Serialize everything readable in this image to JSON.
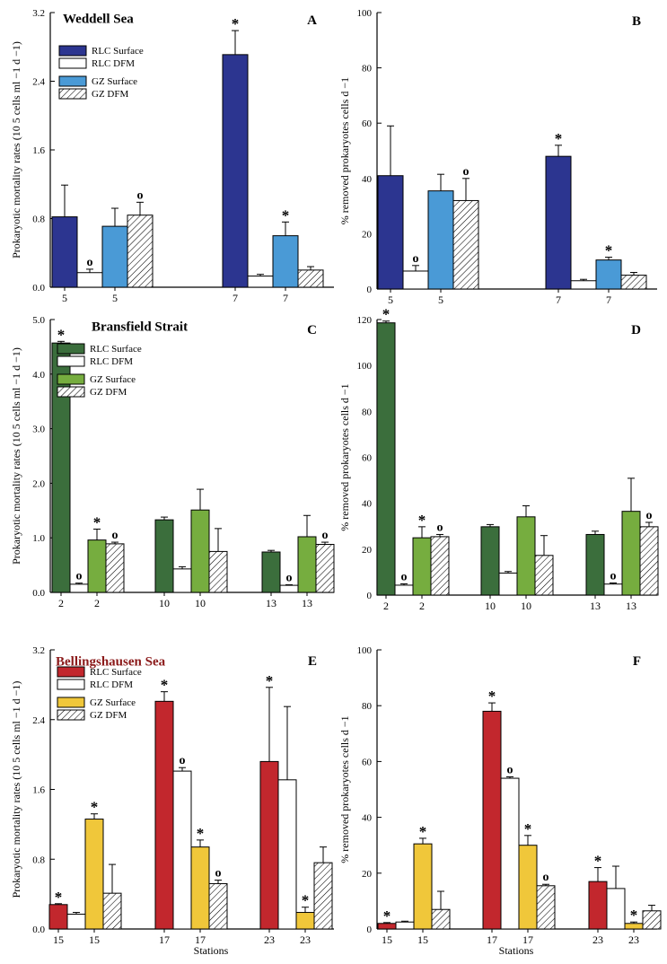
{
  "figure": {
    "colors": {
      "rlc_weddell": "#2c3590",
      "gz_weddell": "#4a9ad6",
      "rlc_bransfield": "#3b6e3c",
      "gz_bransfield": "#76ad3f",
      "rlc_bellingshausen": "#c2272d",
      "gz_bellingshausen": "#f0c73a",
      "dfm": "#ffffff",
      "axis": "#000000",
      "bellingshausen_title": "#8b1a1a"
    },
    "icons": {
      "significant_star": "asterisk",
      "marker_o": "circle-o"
    }
  },
  "chart_data": [
    {
      "id": "A",
      "type": "bar",
      "panel_label": "A",
      "title": "Weddell Sea",
      "ylabel": "Prokaryotic mortality rates (10 5 cells ml −1 d −1)",
      "ylim": [
        0,
        3.2
      ],
      "yticks": [
        "0.0",
        "0.8",
        "1.6",
        "2.4",
        "3.2"
      ],
      "xlabel": "",
      "legend": [
        "RLC Surface",
        "RLC DFM",
        "GZ Surface",
        "GZ DFM"
      ],
      "groups": [
        {
          "stations": [
            "5",
            "5"
          ],
          "bars": [
            {
              "series": "RLC Surface",
              "value": 0.82,
              "err": 0.37,
              "mark": ""
            },
            {
              "series": "RLC DFM",
              "value": 0.17,
              "err": 0.04,
              "mark": "o"
            },
            {
              "series": "GZ Surface",
              "value": 0.71,
              "err": 0.21,
              "mark": ""
            },
            {
              "series": "GZ DFM",
              "value": 0.84,
              "err": 0.15,
              "mark": "o"
            }
          ]
        },
        {
          "stations": [
            "7",
            "7"
          ],
          "bars": [
            {
              "series": "RLC Surface",
              "value": 2.71,
              "err": 0.28,
              "mark": "*"
            },
            {
              "series": "RLC DFM",
              "value": 0.13,
              "err": 0.02,
              "mark": ""
            },
            {
              "series": "GZ Surface",
              "value": 0.6,
              "err": 0.16,
              "mark": "*"
            },
            {
              "series": "GZ DFM",
              "value": 0.2,
              "err": 0.04,
              "mark": ""
            }
          ]
        }
      ]
    },
    {
      "id": "B",
      "type": "bar",
      "panel_label": "B",
      "title": "",
      "ylabel": "% removed prokaryotes cells d −1",
      "ylim": [
        0,
        100
      ],
      "yticks": [
        "0",
        "20",
        "40",
        "60",
        "80",
        "100"
      ],
      "xlabel": "",
      "groups": [
        {
          "stations": [
            "5",
            "5"
          ],
          "bars": [
            {
              "series": "RLC Surface",
              "value": 41,
              "err": 18,
              "mark": ""
            },
            {
              "series": "RLC DFM",
              "value": 6.5,
              "err": 2,
              "mark": "o"
            },
            {
              "series": "GZ Surface",
              "value": 35.5,
              "err": 6,
              "mark": ""
            },
            {
              "series": "GZ DFM",
              "value": 32,
              "err": 8,
              "mark": "o"
            }
          ]
        },
        {
          "stations": [
            "7",
            "7"
          ],
          "bars": [
            {
              "series": "RLC Surface",
              "value": 48,
              "err": 4,
              "mark": "*"
            },
            {
              "series": "RLC DFM",
              "value": 3,
              "err": 0.5,
              "mark": ""
            },
            {
              "series": "GZ Surface",
              "value": 10.5,
              "err": 1,
              "mark": "*"
            },
            {
              "series": "GZ DFM",
              "value": 5,
              "err": 1,
              "mark": ""
            }
          ]
        }
      ]
    },
    {
      "id": "C",
      "type": "bar",
      "panel_label": "C",
      "title": "Bransfield Strait",
      "ylabel": "Prokaryotic mortality rates (10 5 cells ml −1 d −1)",
      "ylim": [
        0,
        5
      ],
      "yticks": [
        "0.0",
        "1.0",
        "2.0",
        "3.0",
        "4.0",
        "5.0"
      ],
      "xlabel": "",
      "legend": [
        "RLC Surface",
        "RLC DFM",
        "GZ Surface",
        "GZ DFM"
      ],
      "groups": [
        {
          "stations": [
            "2",
            "2"
          ],
          "bars": [
            {
              "series": "RLC Surface",
              "value": 4.57,
              "err": 0.03,
              "mark": "*"
            },
            {
              "series": "RLC DFM",
              "value": 0.15,
              "err": 0.02,
              "mark": "o"
            },
            {
              "series": "GZ Surface",
              "value": 0.96,
              "err": 0.2,
              "mark": "*"
            },
            {
              "series": "GZ DFM",
              "value": 0.89,
              "err": 0.03,
              "mark": "o"
            }
          ]
        },
        {
          "stations": [
            "10",
            "10"
          ],
          "bars": [
            {
              "series": "RLC Surface",
              "value": 1.33,
              "err": 0.05,
              "mark": ""
            },
            {
              "series": "RLC DFM",
              "value": 0.43,
              "err": 0.04,
              "mark": ""
            },
            {
              "series": "GZ Surface",
              "value": 1.51,
              "err": 0.38,
              "mark": ""
            },
            {
              "series": "GZ DFM",
              "value": 0.75,
              "err": 0.42,
              "mark": ""
            }
          ]
        },
        {
          "stations": [
            "13",
            "13"
          ],
          "bars": [
            {
              "series": "RLC Surface",
              "value": 0.74,
              "err": 0.03,
              "mark": ""
            },
            {
              "series": "RLC DFM",
              "value": 0.13,
              "err": 0.01,
              "mark": "o"
            },
            {
              "series": "GZ Surface",
              "value": 1.02,
              "err": 0.39,
              "mark": ""
            },
            {
              "series": "GZ DFM",
              "value": 0.88,
              "err": 0.04,
              "mark": "o"
            }
          ]
        }
      ]
    },
    {
      "id": "D",
      "type": "bar",
      "panel_label": "D",
      "title": "",
      "ylabel": "% removed prokaryotes cells d −1",
      "ylim": [
        0,
        125
      ],
      "yticks": [
        "0",
        "20",
        "40",
        "60",
        "80",
        "100",
        "120"
      ],
      "xlabel": "",
      "groups": [
        {
          "stations": [
            "2",
            "2"
          ],
          "bars": [
            {
              "series": "RLC Surface",
              "value": 123.5,
              "err": 0.8,
              "mark": "*"
            },
            {
              "series": "RLC DFM",
              "value": 4.5,
              "err": 0.6,
              "mark": "o"
            },
            {
              "series": "GZ Surface",
              "value": 26,
              "err": 5,
              "mark": "*"
            },
            {
              "series": "GZ DFM",
              "value": 26.5,
              "err": 1,
              "mark": "o"
            }
          ]
        },
        {
          "stations": [
            "10",
            "10"
          ],
          "bars": [
            {
              "series": "RLC Surface",
              "value": 31,
              "err": 1,
              "mark": ""
            },
            {
              "series": "RLC DFM",
              "value": 10,
              "err": 0.7,
              "mark": ""
            },
            {
              "series": "GZ Surface",
              "value": 35.5,
              "err": 5,
              "mark": ""
            },
            {
              "series": "GZ DFM",
              "value": 18,
              "err": 9,
              "mark": ""
            }
          ]
        },
        {
          "stations": [
            "13",
            "13"
          ],
          "bars": [
            {
              "series": "RLC Surface",
              "value": 27.5,
              "err": 1.5,
              "mark": ""
            },
            {
              "series": "RLC DFM",
              "value": 5,
              "err": 0.5,
              "mark": "o"
            },
            {
              "series": "GZ Surface",
              "value": 38,
              "err": 15,
              "mark": ""
            },
            {
              "series": "GZ DFM",
              "value": 31,
              "err": 2,
              "mark": "o"
            }
          ]
        }
      ]
    },
    {
      "id": "E",
      "type": "bar",
      "panel_label": "E",
      "title": "Bellingshausen Sea",
      "ylabel": "Prokaryotic mortality rates (10 5 cells ml −1 d −1)",
      "ylim": [
        0,
        3.2
      ],
      "yticks": [
        "0.0",
        "0.8",
        "1.6",
        "2.4",
        "3.2"
      ],
      "xlabel": "Stations",
      "legend": [
        "RLC Surface",
        "RLC DFM",
        "GZ Surface",
        "GZ DFM"
      ],
      "groups": [
        {
          "stations": [
            "15",
            "15"
          ],
          "bars": [
            {
              "series": "RLC Surface",
              "value": 0.28,
              "err": 0.01,
              "mark": "*"
            },
            {
              "series": "RLC DFM",
              "value": 0.17,
              "err": 0.02,
              "mark": ""
            },
            {
              "series": "GZ Surface",
              "value": 1.26,
              "err": 0.06,
              "mark": "*"
            },
            {
              "series": "GZ DFM",
              "value": 0.41,
              "err": 0.33,
              "mark": ""
            }
          ]
        },
        {
          "stations": [
            "17",
            "17"
          ],
          "bars": [
            {
              "series": "RLC Surface",
              "value": 2.61,
              "err": 0.11,
              "mark": "*"
            },
            {
              "series": "RLC DFM",
              "value": 1.81,
              "err": 0.04,
              "mark": "o"
            },
            {
              "series": "GZ Surface",
              "value": 0.94,
              "err": 0.08,
              "mark": "*"
            },
            {
              "series": "GZ DFM",
              "value": 0.52,
              "err": 0.04,
              "mark": "o"
            }
          ]
        },
        {
          "stations": [
            "23",
            "23"
          ],
          "bars": [
            {
              "series": "RLC Surface",
              "value": 1.92,
              "err": 0.85,
              "mark": "*"
            },
            {
              "series": "RLC DFM",
              "value": 1.71,
              "err": 0.84,
              "mark": ""
            },
            {
              "series": "GZ Surface",
              "value": 0.19,
              "err": 0.06,
              "mark": "*"
            },
            {
              "series": "GZ DFM",
              "value": 0.76,
              "err": 0.18,
              "mark": ""
            }
          ]
        }
      ]
    },
    {
      "id": "F",
      "type": "bar",
      "panel_label": "F",
      "title": "",
      "ylabel": "% removed prokaryotes cells d −1",
      "ylim": [
        0,
        100
      ],
      "yticks": [
        "0",
        "20",
        "40",
        "60",
        "80",
        "100"
      ],
      "xlabel": "Stations",
      "groups": [
        {
          "stations": [
            "15",
            "15"
          ],
          "bars": [
            {
              "series": "RLC Surface",
              "value": 2,
              "err": 0.3,
              "mark": "*"
            },
            {
              "series": "RLC DFM",
              "value": 2.5,
              "err": 0.3,
              "mark": ""
            },
            {
              "series": "GZ Surface",
              "value": 30.5,
              "err": 2,
              "mark": "*"
            },
            {
              "series": "GZ DFM",
              "value": 7,
              "err": 6.5,
              "mark": ""
            }
          ]
        },
        {
          "stations": [
            "17",
            "17"
          ],
          "bars": [
            {
              "series": "RLC Surface",
              "value": 78,
              "err": 3,
              "mark": "*"
            },
            {
              "series": "RLC DFM",
              "value": 54,
              "err": 0.5,
              "mark": "o"
            },
            {
              "series": "GZ Surface",
              "value": 30,
              "err": 3.5,
              "mark": "*"
            },
            {
              "series": "GZ DFM",
              "value": 15.5,
              "err": 0.5,
              "mark": "o"
            }
          ]
        },
        {
          "stations": [
            "23",
            "23"
          ],
          "bars": [
            {
              "series": "RLC Surface",
              "value": 17,
              "err": 5,
              "mark": "*"
            },
            {
              "series": "RLC DFM",
              "value": 14.5,
              "err": 8,
              "mark": ""
            },
            {
              "series": "GZ Surface",
              "value": 2,
              "err": 0.5,
              "mark": "*"
            },
            {
              "series": "GZ DFM",
              "value": 6.5,
              "err": 2,
              "mark": ""
            }
          ]
        }
      ]
    }
  ]
}
